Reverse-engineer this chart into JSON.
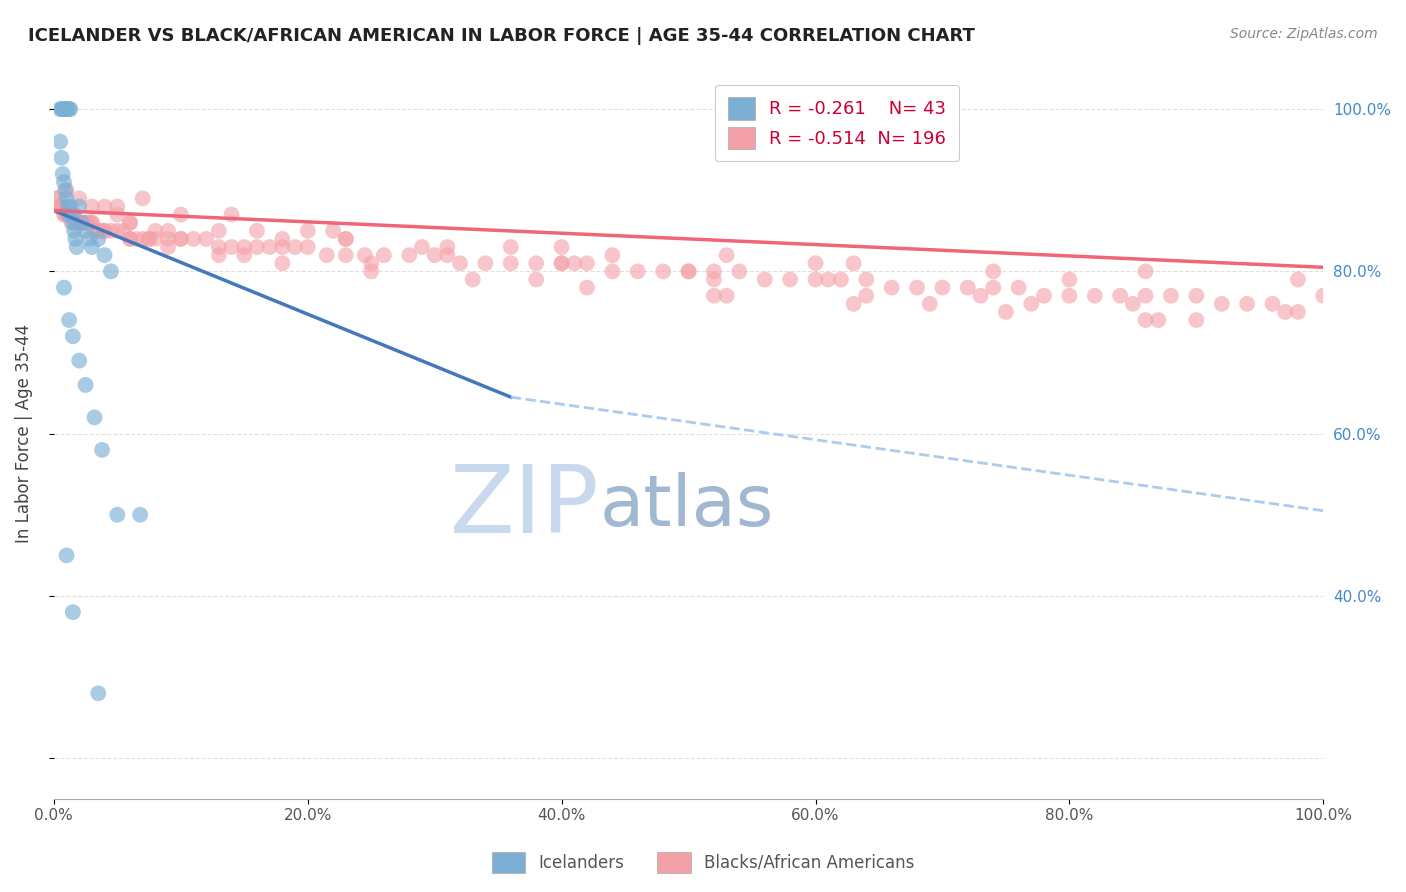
{
  "title": "ICELANDER VS BLACK/AFRICAN AMERICAN IN LABOR FORCE | AGE 35-44 CORRELATION CHART",
  "source": "Source: ZipAtlas.com",
  "ylabel": "In Labor Force | Age 35-44",
  "xlim": [
    0.0,
    1.0
  ],
  "ylim": [
    0.15,
    1.05
  ],
  "blue_R": -0.261,
  "blue_N": 43,
  "pink_R": -0.514,
  "pink_N": 196,
  "blue_color": "#7BAFD4",
  "pink_color": "#F4A0A8",
  "blue_line_color": "#4477BB",
  "pink_line_color": "#EE6677",
  "dashed_line_color": "#AACCEE",
  "legend_label_blue": "Icelanders",
  "legend_label_pink": "Blacks/African Americans",
  "blue_scatter_x": [
    0.005,
    0.006,
    0.007,
    0.008,
    0.009,
    0.01,
    0.011,
    0.012,
    0.013,
    0.005,
    0.006,
    0.007,
    0.008,
    0.009,
    0.01,
    0.011,
    0.012,
    0.013,
    0.014,
    0.015,
    0.016,
    0.017,
    0.018,
    0.02,
    0.022,
    0.025,
    0.028,
    0.03,
    0.035,
    0.04,
    0.045,
    0.008,
    0.012,
    0.015,
    0.02,
    0.025,
    0.032,
    0.038,
    0.05,
    0.068,
    0.01,
    0.015,
    0.035
  ],
  "blue_scatter_y": [
    1.0,
    1.0,
    1.0,
    1.0,
    1.0,
    1.0,
    1.0,
    1.0,
    1.0,
    0.96,
    0.94,
    0.92,
    0.91,
    0.9,
    0.89,
    0.88,
    0.87,
    0.88,
    0.87,
    0.86,
    0.85,
    0.84,
    0.83,
    0.88,
    0.86,
    0.85,
    0.84,
    0.83,
    0.84,
    0.82,
    0.8,
    0.78,
    0.74,
    0.72,
    0.69,
    0.66,
    0.62,
    0.58,
    0.5,
    0.5,
    0.45,
    0.38,
    0.28
  ],
  "pink_scatter_x": [
    0.002,
    0.003,
    0.004,
    0.005,
    0.006,
    0.007,
    0.008,
    0.009,
    0.01,
    0.011,
    0.012,
    0.013,
    0.014,
    0.015,
    0.016,
    0.017,
    0.018,
    0.019,
    0.02,
    0.022,
    0.024,
    0.026,
    0.028,
    0.03,
    0.032,
    0.034,
    0.036,
    0.038,
    0.04,
    0.045,
    0.05,
    0.055,
    0.06,
    0.065,
    0.07,
    0.075,
    0.08,
    0.09,
    0.1,
    0.11,
    0.12,
    0.13,
    0.14,
    0.15,
    0.16,
    0.17,
    0.18,
    0.19,
    0.2,
    0.215,
    0.23,
    0.245,
    0.26,
    0.28,
    0.3,
    0.32,
    0.34,
    0.36,
    0.38,
    0.4,
    0.42,
    0.44,
    0.46,
    0.48,
    0.5,
    0.52,
    0.54,
    0.56,
    0.58,
    0.6,
    0.62,
    0.64,
    0.66,
    0.68,
    0.7,
    0.72,
    0.74,
    0.76,
    0.78,
    0.8,
    0.82,
    0.84,
    0.86,
    0.88,
    0.9,
    0.92,
    0.94,
    0.96,
    0.98,
    0.01,
    0.02,
    0.03,
    0.04,
    0.05,
    0.06,
    0.08,
    0.1,
    0.03,
    0.06,
    0.09,
    0.13,
    0.18,
    0.23,
    0.29,
    0.36,
    0.44,
    0.53,
    0.63,
    0.74,
    0.86,
    0.98,
    0.015,
    0.025,
    0.04,
    0.06,
    0.09,
    0.13,
    0.18,
    0.25,
    0.33,
    0.42,
    0.52,
    0.63,
    0.75,
    0.87,
    0.05,
    0.1,
    0.16,
    0.23,
    0.31,
    0.4,
    0.5,
    0.61,
    0.73,
    0.85,
    0.97,
    0.07,
    0.14,
    0.22,
    0.31,
    0.41,
    0.52,
    0.64,
    0.77,
    0.9,
    0.2,
    0.4,
    0.6,
    0.8,
    1.0,
    0.025,
    0.075,
    0.15,
    0.25,
    0.38,
    0.53,
    0.69,
    0.86
  ],
  "pink_scatter_y": [
    0.89,
    0.89,
    0.88,
    0.88,
    0.88,
    0.88,
    0.87,
    0.87,
    0.87,
    0.87,
    0.87,
    0.87,
    0.86,
    0.87,
    0.87,
    0.86,
    0.86,
    0.86,
    0.86,
    0.86,
    0.86,
    0.86,
    0.86,
    0.86,
    0.85,
    0.85,
    0.85,
    0.85,
    0.85,
    0.85,
    0.85,
    0.85,
    0.84,
    0.84,
    0.84,
    0.84,
    0.84,
    0.84,
    0.84,
    0.84,
    0.84,
    0.83,
    0.83,
    0.83,
    0.83,
    0.83,
    0.83,
    0.83,
    0.83,
    0.82,
    0.82,
    0.82,
    0.82,
    0.82,
    0.82,
    0.81,
    0.81,
    0.81,
    0.81,
    0.81,
    0.81,
    0.8,
    0.8,
    0.8,
    0.8,
    0.8,
    0.8,
    0.79,
    0.79,
    0.79,
    0.79,
    0.79,
    0.78,
    0.78,
    0.78,
    0.78,
    0.78,
    0.78,
    0.77,
    0.77,
    0.77,
    0.77,
    0.77,
    0.77,
    0.77,
    0.76,
    0.76,
    0.76,
    0.75,
    0.9,
    0.89,
    0.88,
    0.88,
    0.87,
    0.86,
    0.85,
    0.84,
    0.86,
    0.86,
    0.85,
    0.85,
    0.84,
    0.84,
    0.83,
    0.83,
    0.82,
    0.82,
    0.81,
    0.8,
    0.8,
    0.79,
    0.87,
    0.86,
    0.85,
    0.84,
    0.83,
    0.82,
    0.81,
    0.8,
    0.79,
    0.78,
    0.77,
    0.76,
    0.75,
    0.74,
    0.88,
    0.87,
    0.85,
    0.84,
    0.82,
    0.81,
    0.8,
    0.79,
    0.77,
    0.76,
    0.75,
    0.89,
    0.87,
    0.85,
    0.83,
    0.81,
    0.79,
    0.77,
    0.76,
    0.74,
    0.85,
    0.83,
    0.81,
    0.79,
    0.77,
    0.86,
    0.84,
    0.82,
    0.81,
    0.79,
    0.77,
    0.76,
    0.74
  ],
  "blue_line_x0": 0.0,
  "blue_line_y0": 0.875,
  "blue_line_x1": 0.36,
  "blue_line_y1": 0.645,
  "pink_line_x0": 0.0,
  "pink_line_y0": 0.875,
  "pink_line_x1": 1.0,
  "pink_line_y1": 0.805,
  "dash_line_x0": 0.36,
  "dash_line_y0": 0.645,
  "dash_line_x1": 1.0,
  "dash_line_y1": 0.505,
  "right_ytick_values": [
    1.0,
    0.8,
    0.6,
    0.4
  ],
  "right_ytick_labels": [
    "100.0%",
    "80.0%",
    "60.0%",
    "40.0%"
  ],
  "watermark_zip": "ZIP",
  "watermark_atlas": "atlas",
  "watermark_color_zip": "#C8D8ED",
  "watermark_color_atlas": "#A0B8D0",
  "background_color": "#FFFFFF",
  "grid_color": "#DDDDDD",
  "title_color": "#222222",
  "axis_label_color": "#444444",
  "right_axis_color": "#4488CC",
  "source_color": "#888888"
}
